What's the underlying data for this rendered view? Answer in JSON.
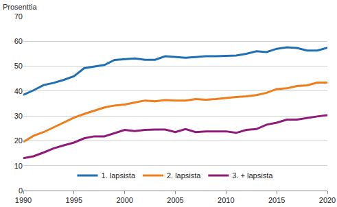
{
  "chart_data": {
    "type": "line",
    "y_label": "Prosenttia",
    "x": [
      1990,
      1991,
      1992,
      1993,
      1994,
      1995,
      1996,
      1997,
      1998,
      1999,
      2000,
      2001,
      2002,
      2003,
      2004,
      2005,
      2006,
      2007,
      2008,
      2009,
      2010,
      2011,
      2012,
      2013,
      2014,
      2015,
      2016,
      2017,
      2018,
      2019,
      2020
    ],
    "series": [
      {
        "name": "1. lapsista",
        "color": "#1f6fb4",
        "values": [
          38.5,
          40.3,
          42.4,
          43.3,
          44.5,
          46.0,
          49.2,
          49.9,
          50.5,
          52.5,
          52.8,
          53.1,
          52.6,
          52.6,
          54.0,
          53.7,
          53.4,
          53.7,
          54.0,
          54.0,
          54.1,
          54.3,
          55.0,
          56.0,
          55.7,
          57.0,
          57.6,
          57.3,
          56.3,
          56.3,
          57.4
        ]
      },
      {
        "name": "2. lapsista",
        "color": "#ef7d1a",
        "values": [
          19.6,
          22.0,
          23.5,
          25.5,
          27.5,
          29.3,
          30.8,
          32.0,
          33.4,
          34.2,
          34.6,
          35.4,
          36.2,
          35.9,
          36.4,
          36.2,
          36.2,
          36.8,
          36.5,
          36.8,
          37.3,
          37.6,
          37.9,
          38.4,
          39.3,
          40.8,
          41.1,
          42.0,
          42.3,
          43.4,
          43.4
        ]
      },
      {
        "name": "3. + lapsista",
        "color": "#8e1a7a",
        "values": [
          13.0,
          13.8,
          15.3,
          17.0,
          18.2,
          19.3,
          21.0,
          21.8,
          21.8,
          23.2,
          24.4,
          23.9,
          24.4,
          24.5,
          24.5,
          23.5,
          24.7,
          23.5,
          23.8,
          23.8,
          23.8,
          23.2,
          24.4,
          24.7,
          26.5,
          27.3,
          28.5,
          28.5,
          29.2,
          29.8,
          30.3
        ]
      }
    ],
    "xlim": [
      1990,
      2020
    ],
    "xticks": [
      1990,
      1995,
      2000,
      2005,
      2010,
      2015,
      2020
    ],
    "ylim": [
      0,
      70
    ],
    "yticks": [
      0,
      10,
      20,
      30,
      40,
      50,
      60,
      70
    ],
    "grid": true,
    "legend": "bottom"
  }
}
